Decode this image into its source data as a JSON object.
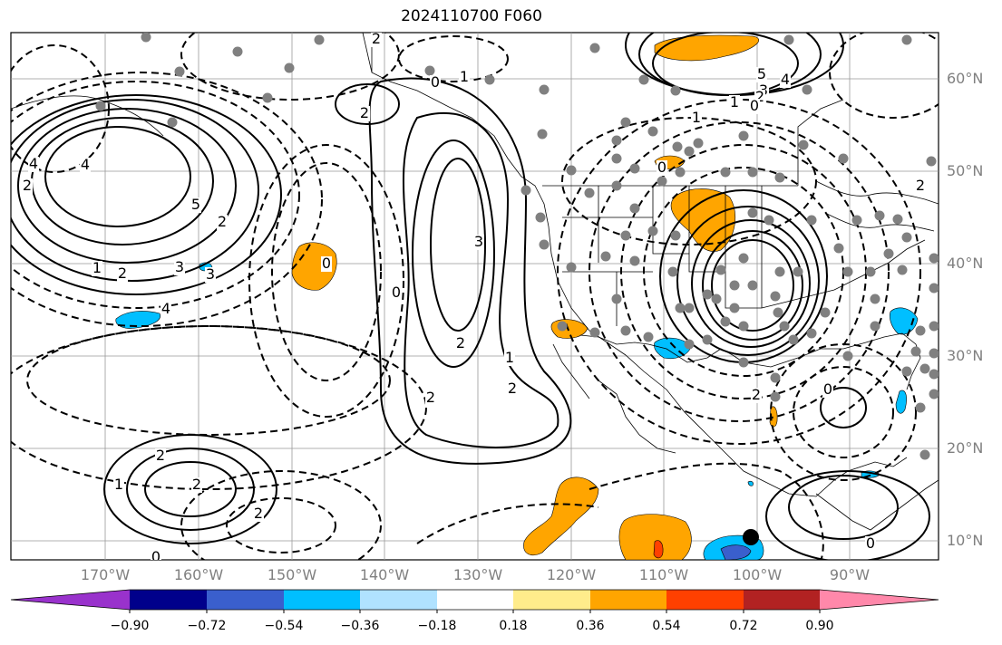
{
  "title": "2024110700 F060",
  "lat_labels": [
    "60°N",
    "50°N",
    "40°N",
    "30°N",
    "20°N",
    "10°N"
  ],
  "lon_labels": [
    "170°W",
    "160°W",
    "150°W",
    "140°W",
    "130°W",
    "120°W",
    "110°W",
    "100°W",
    "90°W"
  ],
  "colorbar": {
    "colors": [
      "#9932cc",
      "#00008b",
      "#3a5fcd",
      "#00bfff",
      "#b0e2ff",
      "#ffffff",
      "#ffec8b",
      "#ffa500",
      "#ff4000",
      "#b22222",
      "#ff88aa"
    ],
    "tick_labels": [
      "−0.90",
      "−0.72",
      "−0.54",
      "−0.36",
      "−0.18",
      "0.18",
      "0.36",
      "0.54",
      "0.72",
      "0.90"
    ]
  },
  "contour_labels": [
    "2",
    "1",
    "0",
    "2",
    "3",
    "5",
    "4",
    "1",
    "2",
    "3",
    "0",
    "3",
    "2",
    "2",
    "2",
    "1",
    "4",
    "0",
    "1",
    "5",
    "4",
    "3",
    "2",
    "1",
    "0",
    "2",
    "4",
    "0",
    "2",
    "0",
    "2",
    "1",
    "2",
    "0",
    "2",
    "2",
    "0",
    "2"
  ],
  "colors": {
    "orange": "#ffa500",
    "light_blue": "#00bfff",
    "dark_blue": "#3a5fcd",
    "red": "#ff4000",
    "station": "#808080",
    "grid": "#999999"
  }
}
